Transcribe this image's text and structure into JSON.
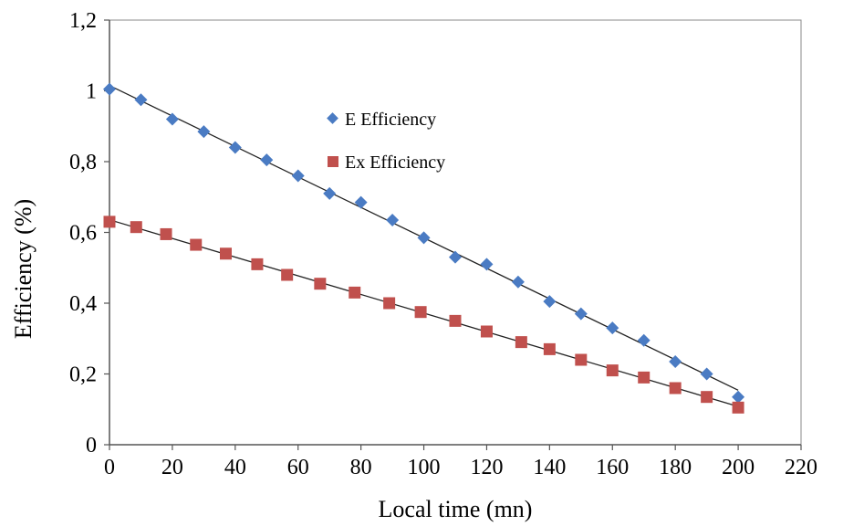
{
  "chart_data": {
    "type": "scatter",
    "title": "",
    "xlabel": "Local time (mn)",
    "ylabel": "Efficiency  (%)",
    "xlim": [
      0,
      220
    ],
    "ylim": [
      0,
      1.2
    ],
    "x_ticks": [
      "0",
      "20",
      "40",
      "60",
      "80",
      "100",
      "120",
      "140",
      "160",
      "180",
      "200",
      "220"
    ],
    "y_ticks": [
      "0",
      "0,2",
      "0,4",
      "0,6",
      "0,8",
      "1",
      "1,2"
    ],
    "grid": false,
    "legend_position": "center",
    "series": [
      {
        "name": "E Efficiency",
        "marker": "diamond",
        "color": "#4a7bc3",
        "trendline": "linear",
        "x": [
          0,
          10,
          20,
          30,
          40,
          50,
          60,
          70,
          80,
          90,
          100,
          110,
          120,
          130,
          140,
          150,
          160,
          170,
          180,
          190,
          200
        ],
        "y": [
          1.005,
          0.975,
          0.92,
          0.885,
          0.84,
          0.805,
          0.76,
          0.71,
          0.685,
          0.635,
          0.585,
          0.53,
          0.51,
          0.46,
          0.405,
          0.37,
          0.33,
          0.295,
          0.235,
          0.2,
          0.135
        ]
      },
      {
        "name": "Ex Efficiency",
        "marker": "square",
        "color": "#c0504d",
        "trendline": "linear",
        "x": [
          0,
          8.5,
          18,
          27.5,
          37,
          47,
          56.5,
          67,
          78,
          89,
          99,
          110,
          120,
          131,
          140,
          150,
          160,
          170,
          180,
          190,
          200
        ],
        "y": [
          0.63,
          0.615,
          0.595,
          0.565,
          0.54,
          0.51,
          0.48,
          0.455,
          0.43,
          0.4,
          0.375,
          0.35,
          0.32,
          0.29,
          0.27,
          0.24,
          0.21,
          0.19,
          0.16,
          0.135,
          0.105
        ]
      }
    ]
  }
}
